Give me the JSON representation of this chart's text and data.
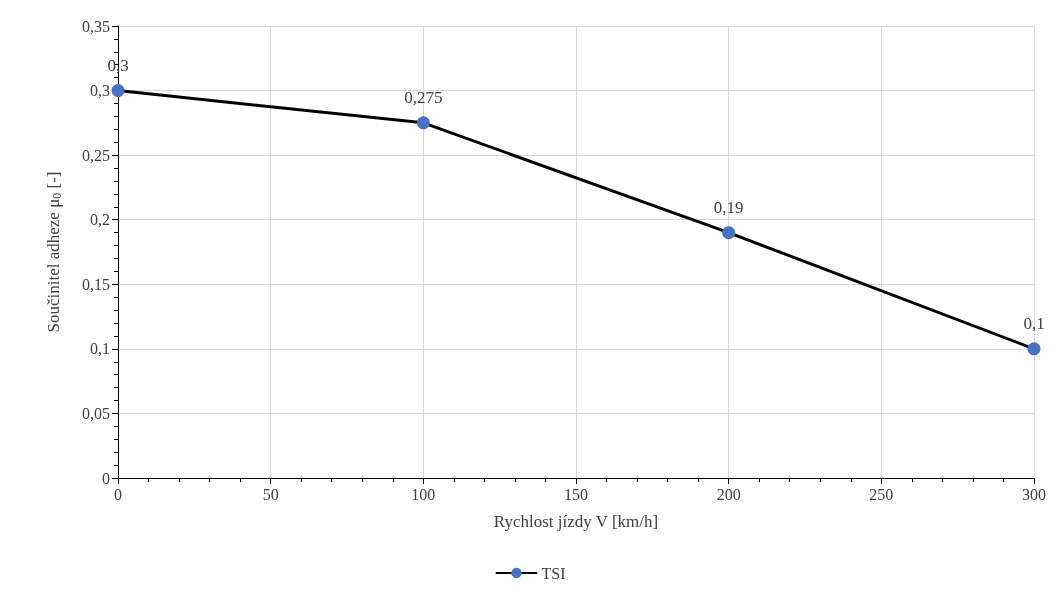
{
  "chart_data": {
    "type": "line",
    "xlabel": "Rychlost jízdy V [km/h]",
    "ylabel": "Součinitel adheze μ$_{0}$ [-]",
    "x": [
      0,
      100,
      200,
      300
    ],
    "series": [
      {
        "name": "TSI",
        "color": "#000000",
        "colors": [
          "#4472c4",
          "#4472c4",
          "#4472c4",
          "#4472c4"
        ],
        "values": [
          0.3,
          0.275,
          0.19,
          0.1
        ],
        "value_labels": [
          "0,3",
          "0,275",
          "0,19",
          "0,1"
        ]
      }
    ],
    "xlim": [
      0,
      300
    ],
    "xticks": [
      0,
      50,
      100,
      150,
      200,
      250,
      300
    ],
    "ylim": [
      0,
      0.35
    ],
    "yticks": [
      0,
      {
        "value": 0.05,
        "label": "0,05"
      },
      {
        "value": 0.1,
        "label": "0,1"
      },
      {
        "value": 0.15,
        "label": "0,15"
      },
      {
        "value": 0.2,
        "label": "0,2"
      },
      {
        "value": 0.25,
        "label": "0,25"
      },
      {
        "value": 0.3,
        "label": "0,3"
      },
      {
        "value": 0.35,
        "label": "0,35"
      }
    ],
    "grid": true,
    "legend": "bottom",
    "marker": "circle",
    "line_style": "solid"
  }
}
